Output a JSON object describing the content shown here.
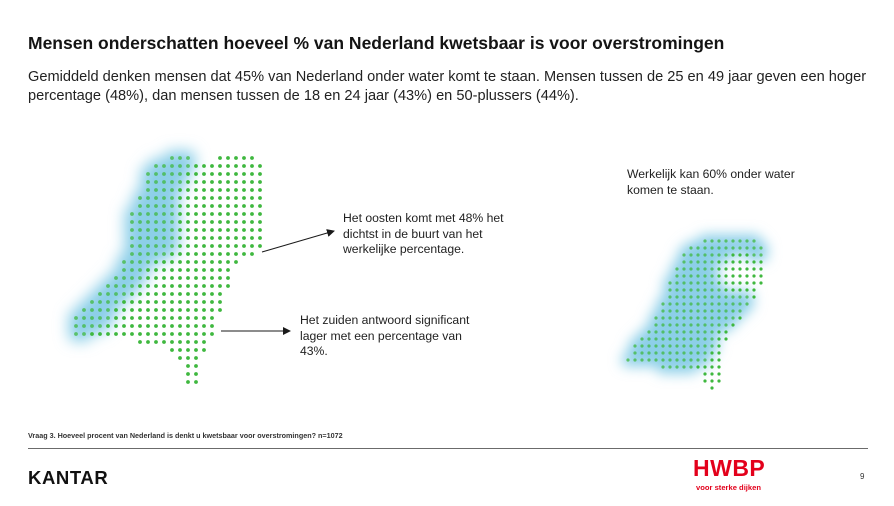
{
  "slide": {
    "title": "Mensen onderschatten hoeveel % van Nederland kwetsbaar is voor overstromingen",
    "subtitle": "Gemiddeld denken mensen dat 45% van Nederland onder water komt te staan. Mensen tussen de 25 en 49 jaar geven een hoger percentage (48%), dan mensen tussen de 18 en 24 jaar (43%) en 50-plussers (44%).",
    "annotations": {
      "east": "Het oosten komt met 48% het dichtst in de buurt van het werkelijke percentage.",
      "south": "Het zuiden antwoord significant lager met een percentage van 43%.",
      "actual": "Werkelijk kan 60% onder water komen te staan."
    },
    "footnote": "Vraag 3. Hoeveel procent van Nederland is denkt u kwetsbaar voor overstromingen? n=1072",
    "page_number": "9"
  },
  "maps": {
    "perceived": {
      "flooded_percent": 45
    },
    "actual": {
      "flooded_percent": 60
    }
  },
  "branding": {
    "company_logo": "KANTAR",
    "partner_logo": "HWBP",
    "partner_tagline": "voor sterke dijken"
  },
  "colors": {
    "land_dots": "#3fb83f",
    "water_haze": "#8ccfe8",
    "arrow": "#1a1a1a",
    "hwbp_red": "#e3001b",
    "text": "#1a1a1a"
  }
}
